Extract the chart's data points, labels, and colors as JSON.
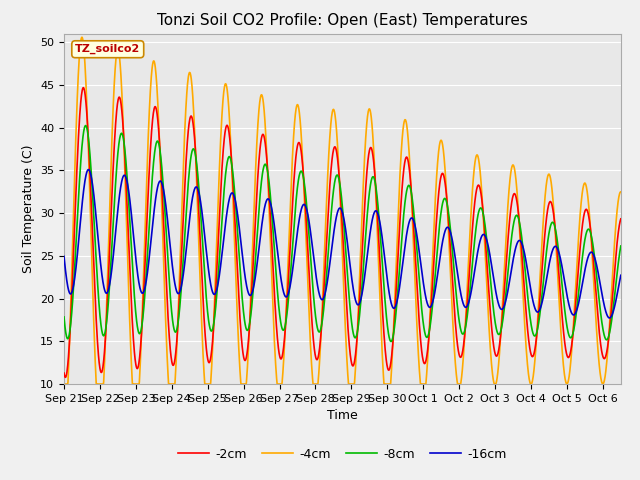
{
  "title": "Tonzi Soil CO2 Profile: Open (East) Temperatures",
  "ylabel": "Soil Temperature (C)",
  "xlabel": "Time",
  "ylim": [
    10,
    51
  ],
  "legend_label": "TZ_soilco2",
  "series_labels": [
    "-2cm",
    "-4cm",
    "-8cm",
    "-16cm"
  ],
  "series_colors": [
    "#ff0000",
    "#ffaa00",
    "#00bb00",
    "#0000cc"
  ],
  "bg_color": "#e8e8e8",
  "grid_color": "#ffffff",
  "title_fontsize": 11,
  "axis_fontsize": 9,
  "tick_fontsize": 8,
  "legend_fontsize": 9,
  "linewidth": 1.2,
  "date_labels": [
    "Sep 21",
    "Sep 22",
    "Sep 23",
    "Sep 24",
    "Sep 25",
    "Sep 26",
    "Sep 27",
    "Sep 28",
    "Sep 29",
    "Sep 30",
    "Oct 1",
    "Oct 2",
    "Oct 3",
    "Oct 4",
    "Oct 5",
    "Oct 6"
  ],
  "date_ticks": [
    0,
    1,
    2,
    3,
    4,
    5,
    6,
    7,
    8,
    9,
    10,
    11,
    12,
    13,
    14,
    15
  ]
}
